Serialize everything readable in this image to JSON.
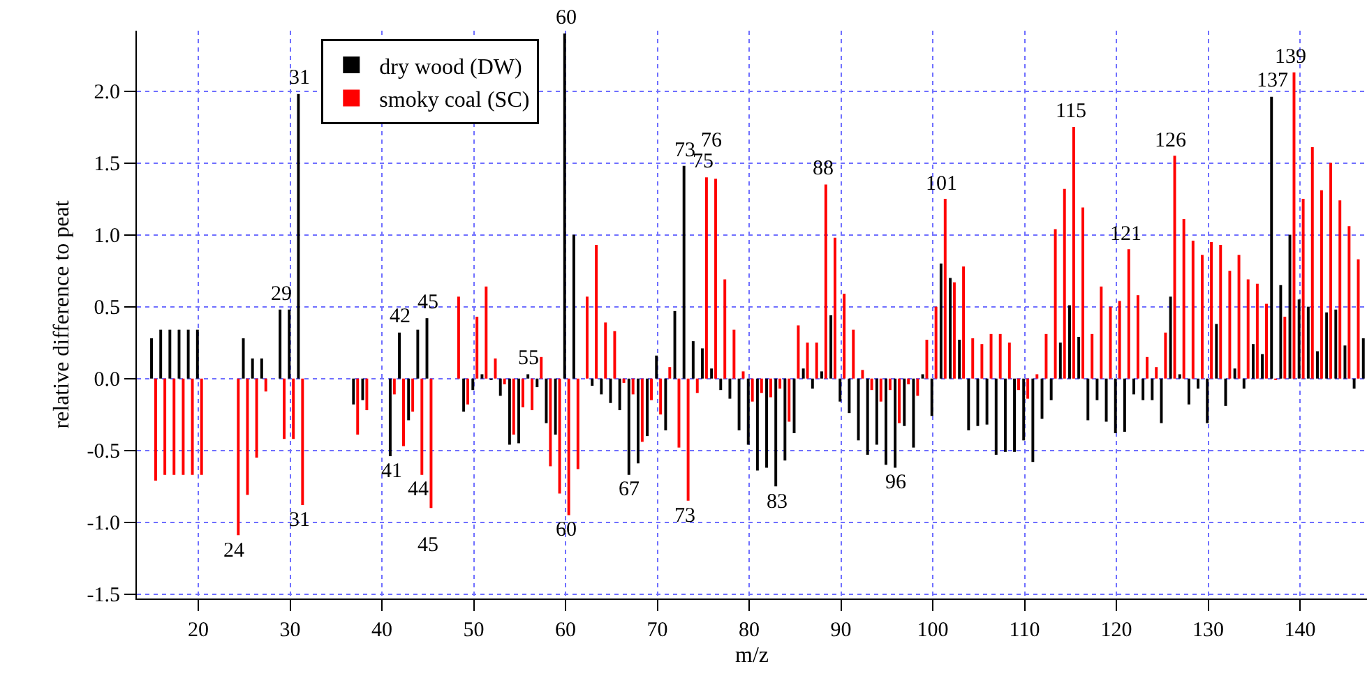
{
  "chart_data": {
    "type": "bar",
    "xlabel": "m/z",
    "ylabel": "relative difference to peat",
    "x": [
      15,
      16,
      17,
      18,
      19,
      20,
      21,
      22,
      23,
      24,
      25,
      26,
      27,
      28,
      29,
      30,
      31,
      32,
      33,
      34,
      35,
      36,
      37,
      38,
      39,
      40,
      41,
      42,
      43,
      44,
      45,
      46,
      47,
      48,
      49,
      50,
      51,
      52,
      53,
      54,
      55,
      56,
      57,
      58,
      59,
      60,
      61,
      62,
      63,
      64,
      65,
      66,
      67,
      68,
      69,
      70,
      71,
      72,
      73,
      74,
      75,
      76,
      77,
      78,
      79,
      80,
      81,
      82,
      83,
      84,
      85,
      86,
      87,
      88,
      89,
      90,
      91,
      92,
      93,
      94,
      95,
      96,
      97,
      98,
      99,
      100,
      101,
      102,
      103,
      104,
      105,
      106,
      107,
      108,
      109,
      110,
      111,
      112,
      113,
      114,
      115,
      116,
      117,
      118,
      119,
      120,
      121,
      122,
      123,
      124,
      125,
      126,
      127,
      128,
      129,
      130,
      131,
      132,
      133,
      134,
      135,
      136,
      137,
      138,
      139,
      140,
      141,
      142,
      143,
      144,
      145,
      146,
      147
    ],
    "series": [
      {
        "name": "dry wood (DW)",
        "color": "#000000",
        "values": [
          0.28,
          0.34,
          0.34,
          0.34,
          0.34,
          0.34,
          null,
          null,
          null,
          null,
          0.28,
          0.14,
          0.14,
          null,
          0.48,
          0.48,
          1.98,
          null,
          null,
          null,
          null,
          null,
          -0.18,
          -0.15,
          null,
          null,
          -0.54,
          0.32,
          -0.29,
          0.34,
          0.42,
          null,
          null,
          null,
          -0.23,
          -0.08,
          0.03,
          -0.01,
          -0.12,
          -0.46,
          -0.45,
          0.03,
          -0.06,
          -0.31,
          -0.39,
          2.4,
          1.0,
          null,
          -0.05,
          -0.11,
          -0.17,
          -0.22,
          -0.67,
          -0.59,
          -0.4,
          0.16,
          -0.36,
          0.47,
          1.48,
          0.26,
          0.21,
          0.07,
          -0.08,
          -0.14,
          -0.36,
          -0.46,
          -0.64,
          -0.62,
          -0.75,
          -0.57,
          -0.38,
          0.07,
          -0.07,
          0.05,
          0.44,
          -0.16,
          -0.24,
          -0.43,
          -0.53,
          -0.46,
          -0.6,
          -0.62,
          -0.33,
          -0.48,
          0.03,
          -0.26,
          0.8,
          0.7,
          0.27,
          -0.36,
          -0.33,
          -0.32,
          -0.53,
          -0.51,
          -0.51,
          -0.43,
          -0.58,
          -0.28,
          -0.15,
          0.25,
          0.51,
          0.29,
          -0.29,
          -0.15,
          -0.3,
          -0.38,
          -0.37,
          -0.11,
          -0.15,
          -0.15,
          -0.31,
          0.57,
          0.03,
          -0.18,
          -0.07,
          -0.31,
          0.38,
          -0.19,
          0.07,
          -0.07,
          0.24,
          0.17,
          1.96,
          0.65,
          1.0,
          0.55,
          0.5,
          0.19,
          0.46,
          0.48,
          0.23,
          -0.07,
          0.28
        ]
      },
      {
        "name": "smoky coal (SC)",
        "color": "#ff0000",
        "values": [
          -0.71,
          -0.67,
          -0.67,
          -0.67,
          -0.67,
          -0.67,
          null,
          null,
          null,
          -1.09,
          -0.81,
          -0.55,
          -0.09,
          null,
          -0.42,
          -0.42,
          -0.88,
          null,
          null,
          null,
          null,
          null,
          -0.39,
          -0.22,
          null,
          null,
          -0.11,
          -0.47,
          -0.23,
          -0.67,
          -0.9,
          null,
          null,
          0.57,
          -0.18,
          0.43,
          0.64,
          0.14,
          -0.04,
          -0.39,
          -0.2,
          -0.22,
          0.15,
          -0.61,
          -0.8,
          -0.95,
          -0.63,
          0.57,
          0.93,
          0.39,
          0.33,
          -0.03,
          -0.11,
          -0.44,
          -0.15,
          -0.25,
          0.08,
          -0.48,
          -0.85,
          -0.1,
          1.4,
          1.39,
          0.69,
          0.34,
          0.05,
          -0.16,
          -0.1,
          -0.13,
          -0.07,
          -0.3,
          0.37,
          0.25,
          0.25,
          1.35,
          0.98,
          0.59,
          0.34,
          0.06,
          -0.08,
          -0.16,
          -0.08,
          -0.31,
          -0.04,
          -0.12,
          0.27,
          0.5,
          1.25,
          0.67,
          0.78,
          0.28,
          0.24,
          0.31,
          0.31,
          0.25,
          -0.08,
          -0.14,
          0.03,
          0.31,
          1.04,
          1.32,
          1.75,
          1.19,
          0.31,
          0.64,
          0.5,
          0.54,
          0.9,
          0.58,
          0.15,
          0.08,
          0.32,
          1.55,
          1.11,
          0.96,
          0.86,
          0.95,
          0.93,
          0.75,
          0.86,
          0.69,
          0.66,
          0.52,
          -0.01,
          0.43,
          2.13,
          1.25,
          1.61,
          1.31,
          1.5,
          1.24,
          1.06,
          0.83,
          null
        ]
      }
    ],
    "xlim": [
      13.3,
      147.3
    ],
    "xticks": [
      20,
      30,
      40,
      50,
      60,
      70,
      80,
      90,
      100,
      110,
      120,
      130,
      140
    ],
    "ylim": [
      -1.53,
      2.42
    ],
    "yticks": [
      {
        "value": -1.5,
        "label": "-1.5"
      },
      {
        "value": -1.0,
        "label": "-1.0"
      },
      {
        "value": -0.5,
        "label": "-0.5"
      },
      {
        "value": 0,
        "label": "0.0"
      },
      {
        "value": 0.5,
        "label": "0.5"
      },
      {
        "value": 1.0,
        "label": "1.0"
      },
      {
        "value": 1.5,
        "label": "1.5"
      },
      {
        "value": 2.0,
        "label": "2.0"
      }
    ],
    "grid": true,
    "legend": "top left",
    "annotations": [
      {
        "text": "24",
        "x": 24,
        "y": -1.09
      },
      {
        "text": "29",
        "x": 29,
        "y": 0.48
      },
      {
        "text": "31",
        "x": 31,
        "y": 1.98
      },
      {
        "text": "31",
        "x": 31,
        "y": -0.88
      },
      {
        "text": "41",
        "x": 41,
        "y": -0.54
      },
      {
        "text": "42",
        "x": 42,
        "y": 0.32
      },
      {
        "text": "44",
        "x": 44,
        "y": -0.67
      },
      {
        "text": "45",
        "x": 45,
        "y": 0.42
      },
      {
        "text": "45",
        "x": 45,
        "y": -0.9
      },
      {
        "text": "55",
        "x": 56,
        "y": 0.03
      },
      {
        "text": "60",
        "x": 60,
        "y": 2.4
      },
      {
        "text": "60",
        "x": 60,
        "y": -0.95
      },
      {
        "text": "67",
        "x": 67,
        "y": -0.67
      },
      {
        "text": "73",
        "x": 73,
        "y": 1.48
      },
      {
        "text": "73",
        "x": 73,
        "y": -0.85
      },
      {
        "text": "75",
        "x": 75,
        "y": 1.4
      },
      {
        "text": "76",
        "x": 76,
        "y": 1.39
      },
      {
        "text": "83",
        "x": 83,
        "y": -0.75
      },
      {
        "text": "88",
        "x": 88,
        "y": 1.35
      },
      {
        "text": "96",
        "x": 96,
        "y": -0.62
      },
      {
        "text": "101",
        "x": 101,
        "y": 1.25
      },
      {
        "text": "115",
        "x": 115,
        "y": 1.75
      },
      {
        "text": "121",
        "x": 121,
        "y": 0.9
      },
      {
        "text": "126",
        "x": 126,
        "y": 1.55
      },
      {
        "text": "137",
        "x": 137,
        "y": 1.96
      },
      {
        "text": "139",
        "x": 139,
        "y": 2.13
      }
    ]
  }
}
